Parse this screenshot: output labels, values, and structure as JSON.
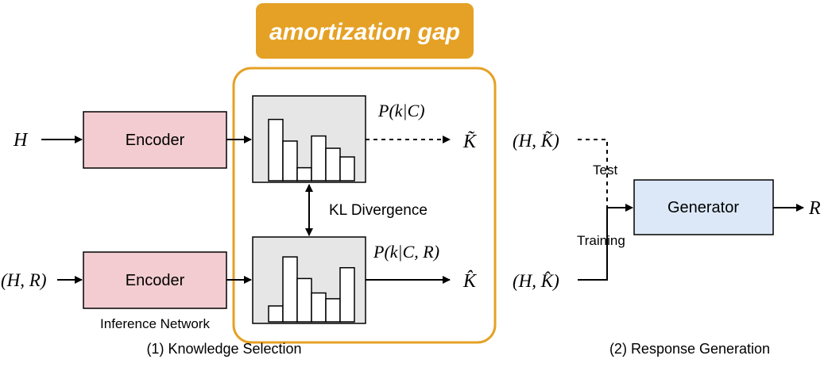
{
  "gap_banner": {
    "label": "amortization gap"
  },
  "inputs": {
    "top": "H",
    "bottom": "(H, R)"
  },
  "encoders": {
    "top_label": "Encoder",
    "bottom_label": "Encoder",
    "inference_label": "Inference Network"
  },
  "distributions": {
    "prior_label": "P(k|C)",
    "posterior_label": "P(k|C, R)",
    "kl_label": "KL Divergence",
    "prior_bars": [
      0.85,
      0.55,
      0.18,
      0.62,
      0.45,
      0.33
    ],
    "posterior_bars": [
      0.22,
      0.9,
      0.6,
      0.4,
      0.32,
      0.75
    ]
  },
  "outputs": {
    "k_tilde": "K̃",
    "k_hat": "K̂"
  },
  "generation": {
    "test_input": "(H, K̃)",
    "train_input": "(H, K̂)",
    "test_label": "Test",
    "training_label": "Training",
    "generator_label": "Generator",
    "output": "R"
  },
  "captions": {
    "left": "(1) Knowledge Selection",
    "right": "(2) Response Generation"
  },
  "colors": {
    "banner": "#E5A125",
    "encoder_fill": "#F2CCD0",
    "generator_fill": "#DCE8F8",
    "dist_fill": "#E6E6E6",
    "gap_border": "#E5A125"
  }
}
